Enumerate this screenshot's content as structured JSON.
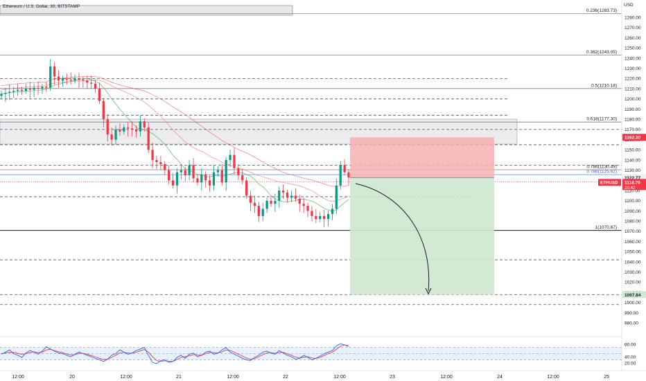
{
  "header": {
    "title": "Ethereum / U.S. Dollar, 30, BITSTAMP"
  },
  "chart_data": {
    "type": "candlestick",
    "currency": "USD",
    "ylim": [
      975,
      1295
    ],
    "y_ticks": [
      980,
      990,
      1000,
      1010,
      1020,
      1030,
      1040,
      1050,
      1060,
      1070,
      1080,
      1090,
      1100,
      1110,
      1120,
      1130,
      1140,
      1150,
      1160,
      1170,
      1180,
      1190,
      1200,
      1210,
      1220,
      1230,
      1240,
      1250,
      1260,
      1270,
      1280
    ],
    "x_ticks": [
      "12:00",
      "20",
      "12:00",
      "21",
      "12:00",
      "22",
      "12:00",
      "23",
      "12:00",
      "24",
      "12:00",
      "25"
    ],
    "fib_levels": [
      {
        "label": "0.236(1283.73)",
        "price": 1283.73
      },
      {
        "label": "0.382(1243.05)",
        "price": 1243.05
      },
      {
        "label": "0.5(1210.18)",
        "price": 1210.18
      },
      {
        "label": "0.618(1177.30)",
        "price": 1177.3
      },
      {
        "label": "0.786(1130.49)",
        "price": 1130.49
      },
      {
        "label": "0.786(1125.62)",
        "price": 1125.62
      },
      {
        "label": "1(1070.87)",
        "price": 1070.87
      }
    ],
    "dashed_levels": [
      1220,
      1200,
      1184,
      1170,
      1155,
      1135,
      1104,
      1042,
      1007.84,
      998
    ],
    "position": {
      "entry": 1122.77,
      "stop": 1162.3,
      "target": 1007.84
    },
    "price_labels": {
      "stop": "1162.30",
      "entry": "1122.77",
      "current": "1118.70",
      "countdown": "20:42",
      "symbol": "ETHUSD",
      "target": "1007.84"
    },
    "close_series": [
      1205,
      1206,
      1207,
      1208,
      1209,
      1208,
      1210,
      1209,
      1211,
      1210,
      1212,
      1211,
      1232,
      1222,
      1218,
      1220,
      1219,
      1218,
      1220,
      1219,
      1218,
      1216,
      1215,
      1210,
      1198,
      1180,
      1165,
      1160,
      1170,
      1168,
      1172,
      1171,
      1170,
      1168,
      1178,
      1172,
      1150,
      1140,
      1138,
      1136,
      1130,
      1120,
      1115,
      1128,
      1130,
      1125,
      1135,
      1122,
      1118,
      1126,
      1120,
      1115,
      1128,
      1130,
      1118,
      1140,
      1145,
      1132,
      1125,
      1120,
      1105,
      1098,
      1095,
      1085,
      1092,
      1100,
      1097,
      1100,
      1110,
      1108,
      1103,
      1105,
      1102,
      1097,
      1095,
      1090,
      1085,
      1082,
      1085,
      1082,
      1087,
      1092,
      1115,
      1135,
      1128,
      1122.77
    ],
    "rsi": {
      "ylim": [
        0,
        100
      ],
      "y_ticks": [
        80,
        40,
        20
      ],
      "band": [
        30,
        70
      ],
      "labels": [
        "80.00",
        "40.00",
        "20.00"
      ],
      "rsi_series": [
        48,
        55,
        62,
        50,
        45,
        38,
        52,
        60,
        55,
        48,
        58,
        72,
        65,
        58,
        52,
        50,
        45,
        40,
        48,
        55,
        50,
        45,
        40,
        35,
        30,
        25,
        32,
        45,
        50,
        62,
        55,
        48,
        52,
        60,
        65,
        70,
        45,
        22,
        18,
        28,
        30,
        22,
        25,
        38,
        45,
        35,
        48,
        52,
        40,
        45,
        55,
        58,
        48,
        52,
        62,
        70,
        55,
        48,
        42,
        35,
        30,
        28,
        38,
        45,
        55,
        58,
        52,
        48,
        60,
        52,
        45,
        40,
        32,
        35,
        45,
        38,
        30,
        35,
        42,
        50,
        55,
        60,
        75,
        82,
        78,
        72
      ],
      "ma_series": [
        50,
        52,
        55,
        54,
        51,
        48,
        50,
        54,
        56,
        53,
        55,
        62,
        64,
        60,
        56,
        53,
        49,
        46,
        47,
        51,
        51,
        48,
        44,
        40,
        35,
        31,
        32,
        38,
        45,
        52,
        54,
        52,
        51,
        55,
        59,
        63,
        55,
        40,
        28,
        25,
        27,
        26,
        25,
        31,
        38,
        40,
        43,
        47,
        46,
        45,
        50,
        54,
        53,
        52,
        56,
        62,
        60,
        55,
        48,
        42,
        36,
        32,
        34,
        40,
        47,
        52,
        53,
        51,
        54,
        54,
        50,
        45,
        39,
        36,
        39,
        40,
        36,
        35,
        38,
        44,
        50,
        55,
        64,
        74,
        78,
        76
      ]
    }
  }
}
